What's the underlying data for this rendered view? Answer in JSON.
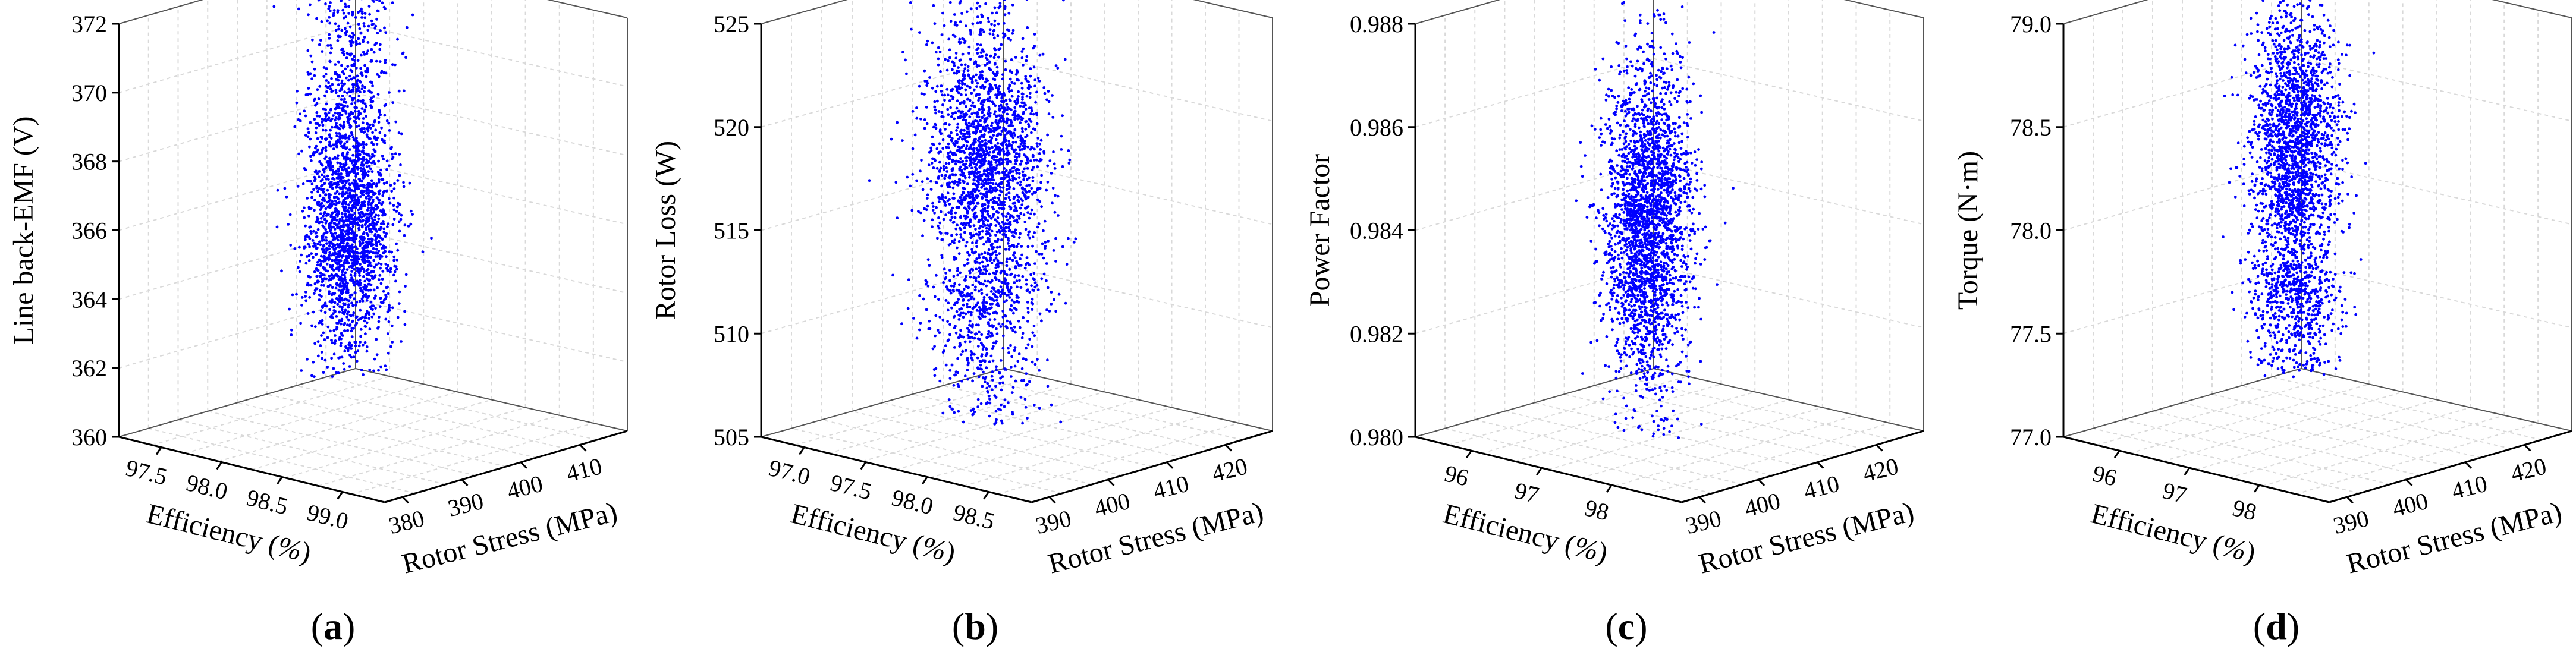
{
  "style": {
    "point_color": "#0000ff",
    "axis_color": "#000000",
    "grid_color": "#d9d9d9"
  },
  "chart_data": [
    {
      "type": "scatter",
      "projection": "3d",
      "panel_label": "(a)",
      "panel_letter": "a",
      "zlabel": "Line back-EMF (V)",
      "xlabel": "Efficiency (%)",
      "ylabel": "Rotor Stress (MPa)",
      "zticks": [
        360,
        362,
        364,
        366,
        368,
        370,
        372
      ],
      "xticks": [
        97.5,
        98.0,
        98.5,
        99.0
      ],
      "yticks": [
        380,
        390,
        400,
        410
      ],
      "point_cloud": {
        "z_range": [
          360.3,
          373.5
        ],
        "z_core": [
          361.5,
          367.5
        ],
        "z_skew": "long upper tail",
        "n_points_approx": 2500
      }
    },
    {
      "type": "scatter",
      "projection": "3d",
      "panel_label": "(b)",
      "panel_letter": "b",
      "zlabel": "Rotor Loss (W)",
      "xlabel": "Efficiency (%)",
      "ylabel": "Rotor Stress (MPa)",
      "zticks": [
        505,
        510,
        515,
        520,
        525
      ],
      "xticks": [
        97.0,
        97.5,
        98.0,
        98.5
      ],
      "yticks": [
        390,
        400,
        410,
        420
      ],
      "point_cloud": {
        "z_range": [
          503,
          523.5
        ],
        "z_core": [
          510,
          521
        ],
        "z_skew": "long lower tail",
        "n_points_approx": 2500
      }
    },
    {
      "type": "scatter",
      "projection": "3d",
      "panel_label": "(c)",
      "panel_letter": "c",
      "zlabel": "Power Factor",
      "xlabel": "Efficiency (%)",
      "ylabel": "Rotor Stress (MPa)",
      "zticks": [
        0.98,
        0.982,
        0.984,
        0.986,
        0.988
      ],
      "zticks_text": [
        "0.980",
        "0.982",
        "0.984",
        "0.986",
        "0.988"
      ],
      "xticks": [
        96,
        97,
        98
      ],
      "yticks": [
        390,
        400,
        410,
        420
      ],
      "point_cloud": {
        "z_range": [
          0.979,
          0.9872
        ],
        "z_core": [
          0.9805,
          0.9855
        ],
        "z_skew": "balanced",
        "n_points_approx": 2500
      }
    },
    {
      "type": "scatter",
      "projection": "3d",
      "panel_label": "(d)",
      "panel_letter": "d",
      "zlabel": "Torque (N·m)",
      "xlabel": "Efficiency (%)",
      "ylabel": "Rotor Stress (MPa)",
      "zticks": [
        77.0,
        77.5,
        78.0,
        78.5,
        79.0
      ],
      "zticks_text": [
        "77.0",
        "77.5",
        "78.0",
        "78.5",
        "79.0"
      ],
      "xticks": [
        96,
        97,
        98
      ],
      "yticks": [
        390,
        400,
        410,
        420
      ],
      "point_cloud": {
        "z_range": [
          77.05,
          78.95
        ],
        "z_core": [
          77.5,
          78.7
        ],
        "z_skew": "long lower tail",
        "n_points_approx": 2500
      }
    }
  ]
}
